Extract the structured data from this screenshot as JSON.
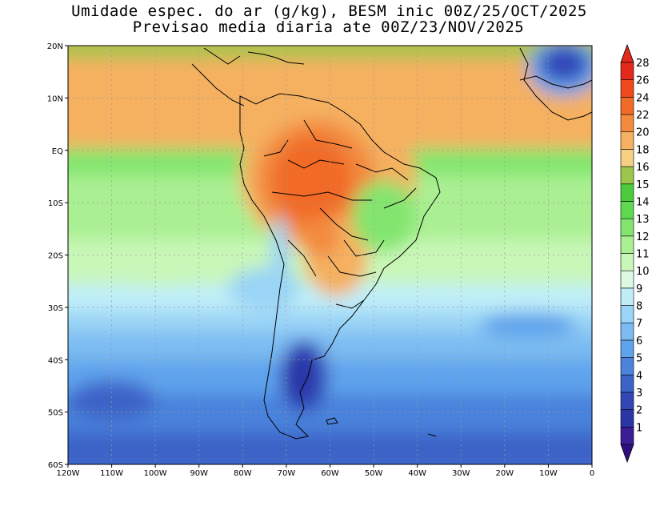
{
  "title_line1": "Umidade espec. do ar (g/kg), BESM inic 00Z/25/OCT/2025",
  "title_line2": "Previsao media diaria ate 00Z/23/NOV/2025",
  "map": {
    "lon_range": [
      -120,
      0
    ],
    "lat_range": [
      -60,
      20
    ],
    "grid": "dotted",
    "x_ticks": [
      "120W",
      "110W",
      "100W",
      "90W",
      "80W",
      "70W",
      "60W",
      "50W",
      "40W",
      "30W",
      "20W",
      "10W",
      "0"
    ],
    "y_ticks": [
      "20N",
      "10N",
      "EQ",
      "10S",
      "20S",
      "30S",
      "40S",
      "50S",
      "60S"
    ]
  },
  "colorbar": {
    "labels": [
      "1",
      "2",
      "3",
      "4",
      "5",
      "6",
      "7",
      "8",
      "9",
      "10",
      "11",
      "12",
      "13",
      "14",
      "15",
      "16",
      "18",
      "20",
      "22",
      "24",
      "26",
      "28"
    ],
    "colors": [
      "#3a1e96",
      "#2b35a6",
      "#3346b8",
      "#3c64c8",
      "#4a82dc",
      "#5ea3ec",
      "#7cbcf2",
      "#9ad4f6",
      "#bfeef9",
      "#ddf9e3",
      "#c9f7b8",
      "#aaf093",
      "#83e56e",
      "#5fda50",
      "#4ccc3d",
      "#9bc64b",
      "#f6cf83",
      "#f5b061",
      "#f38a3c",
      "#f16a27",
      "#ee4a1e",
      "#e3291a"
    ],
    "top_arrow_color": "#e12a1a",
    "bottom_arrow_color": "#2f0f80"
  }
}
